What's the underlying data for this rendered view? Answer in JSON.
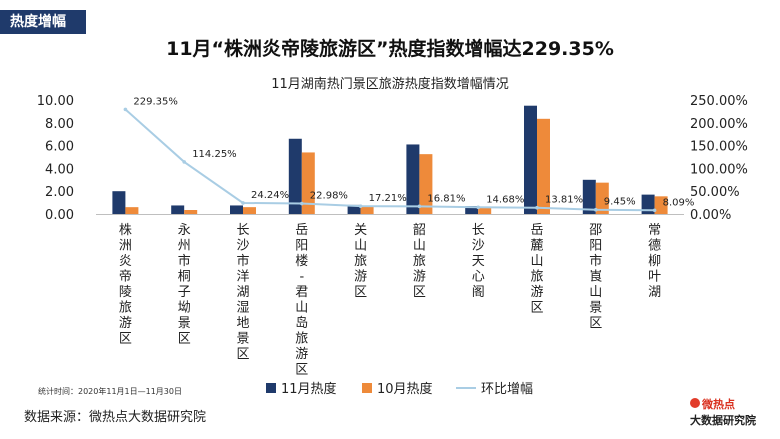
{
  "tag": "热度增幅",
  "title": "11月“株洲炎帝陵旅游区”热度指数增幅达229.35%",
  "chart_data": {
    "type": "bar",
    "title": "11月湖南热门景区旅游热度指数增幅情况",
    "categories": [
      "株洲炎帝陵旅游区",
      "永州市桐子坳景区",
      "长沙市洋湖湿地景区",
      "岳阳楼-君山岛旅游区",
      "关山旅游区",
      "韶山旅游区",
      "长沙天心阁",
      "岳麓山旅游区",
      "邵阳市崀山景区",
      "常德柳叶湖"
    ],
    "series": [
      {
        "name": "11月热度",
        "color": "#1f3a6b",
        "values": [
          2.0,
          0.75,
          0.75,
          6.6,
          0.8,
          6.1,
          0.7,
          9.5,
          3.0,
          1.7
        ],
        "axis": "left"
      },
      {
        "name": "10月热度",
        "color": "#ee8a3a",
        "values": [
          0.6,
          0.35,
          0.6,
          5.4,
          0.7,
          5.25,
          0.6,
          8.35,
          2.75,
          1.55
        ],
        "axis": "left"
      },
      {
        "name": "环比增幅",
        "color": "#a9cde4",
        "values": [
          229.35,
          114.25,
          24.24,
          22.98,
          17.21,
          16.81,
          14.68,
          13.81,
          9.45,
          8.09
        ],
        "labels": [
          "229.35%",
          "114.25%",
          "24.24%",
          "22.98%",
          "17.21%",
          "16.81%",
          "14.68%",
          "13.81%",
          "9.45%",
          "8.09%"
        ],
        "axis": "right",
        "kind": "line"
      }
    ],
    "yleft": {
      "lim": [
        0,
        10
      ],
      "ticks": [
        "0.00",
        "2.00",
        "4.00",
        "6.00",
        "8.00",
        "10.00"
      ]
    },
    "yright": {
      "lim": [
        0,
        250
      ],
      "ticks": [
        "0.00%",
        "50.00%",
        "100.00%",
        "150.00%",
        "200.00%",
        "250.00%"
      ]
    },
    "legend_position": "bottom"
  },
  "footer": {
    "note": "统计时间：2020年11月1日—11月30日",
    "source": "数据来源：微热点大数据研究院"
  },
  "logo": {
    "line1": "微热点",
    "line2": "大数据研究院"
  }
}
